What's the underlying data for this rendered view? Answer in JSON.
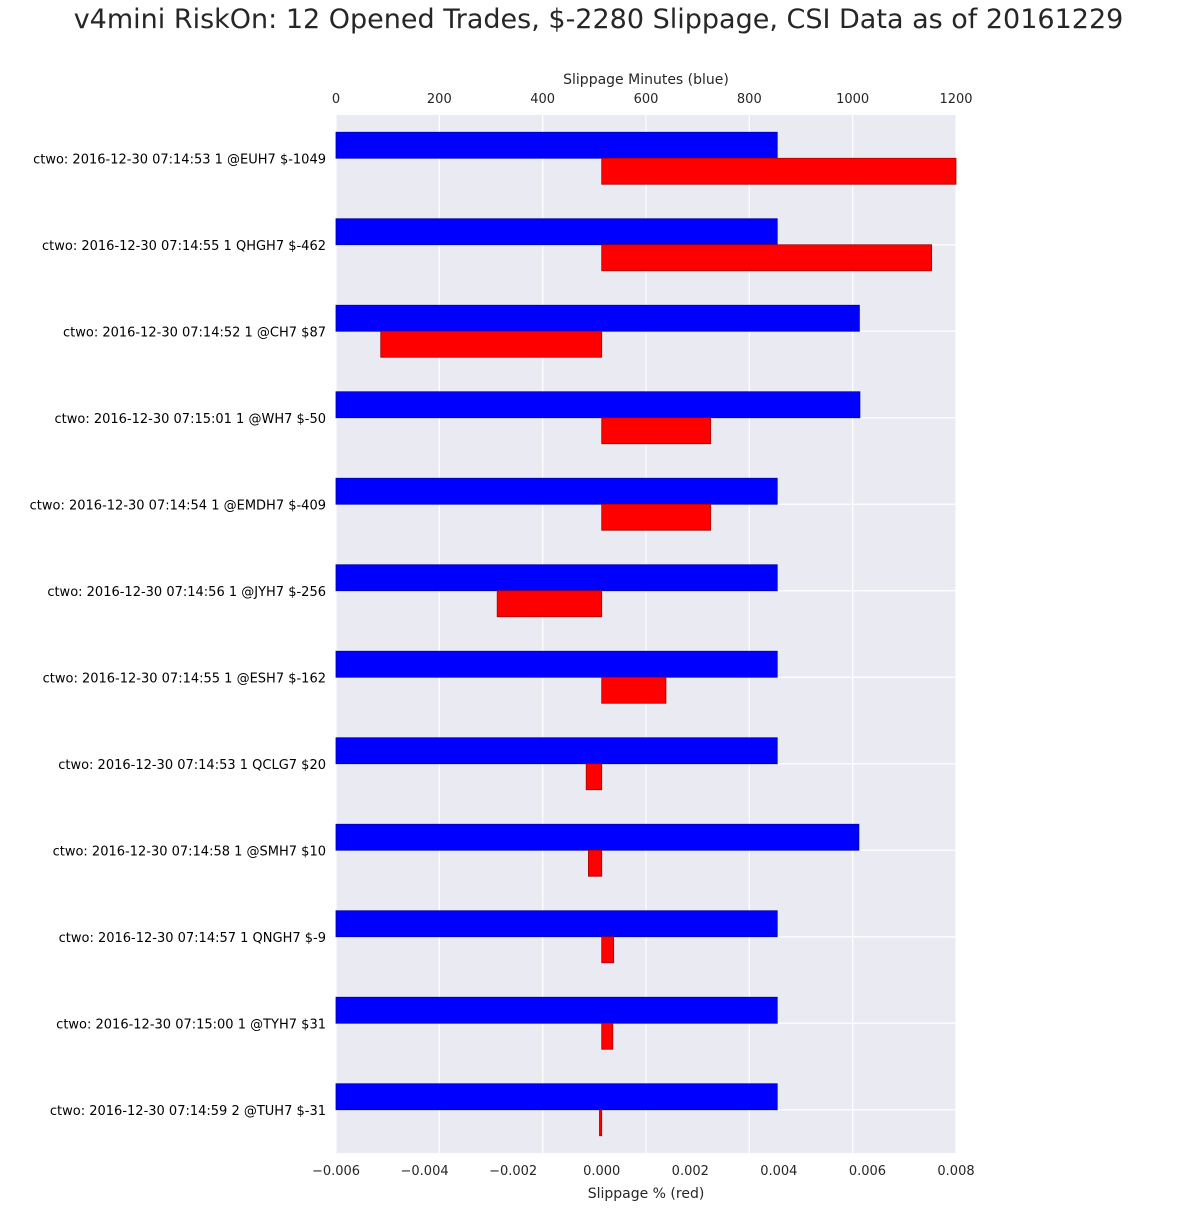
{
  "chart_data": {
    "type": "bar",
    "orientation": "horizontal",
    "title": "v4mini RiskOn: 12 Opened Trades, $-2280 Slippage, CSI Data as of 20161229",
    "top_axis": {
      "label": "Slippage Minutes (blue)",
      "range": [
        0,
        1200
      ],
      "ticks": [
        0,
        200,
        400,
        600,
        800,
        1000,
        1200
      ],
      "tick_labels": [
        "0",
        "200",
        "400",
        "600",
        "800",
        "1000",
        "1200"
      ]
    },
    "bottom_axis": {
      "label": "Slippage % (red)",
      "range": [
        -0.006,
        0.008
      ],
      "ticks": [
        -0.006,
        -0.004,
        -0.002,
        0.0,
        0.002,
        0.004,
        0.006,
        0.008
      ],
      "tick_labels": [
        "−0.006",
        "−0.004",
        "−0.002",
        "0.000",
        "0.002",
        "0.004",
        "0.006",
        "0.008"
      ]
    },
    "grid": true,
    "categories": [
      "ctwo: 2016-12-30 07:14:53 1 @EUH7 $-1049",
      "ctwo: 2016-12-30 07:14:55 1 QHGH7 $-462",
      "ctwo: 2016-12-30 07:14:52 1 @CH7 $87",
      "ctwo: 2016-12-30 07:15:01 1 @WH7 $-50",
      "ctwo: 2016-12-30 07:14:54 1 @EMDH7 $-409",
      "ctwo: 2016-12-30 07:14:56 1 @JYH7 $-256",
      "ctwo: 2016-12-30 07:14:55 1 @ESH7 $-162",
      "ctwo: 2016-12-30 07:14:53 1 QCLG7 $20",
      "ctwo: 2016-12-30 07:14:58 1 @SMH7 $10",
      "ctwo: 2016-12-30 07:14:57 1 QNGH7 $-9",
      "ctwo: 2016-12-30 07:15:00 1 @TYH7 $31",
      "ctwo: 2016-12-30 07:14:59 2 @TUH7 $-31"
    ],
    "series": [
      {
        "name": "Slippage Minutes (blue)",
        "color": "#0000ff",
        "axis": "top",
        "values": [
          854,
          854,
          1013,
          1014,
          854,
          854,
          854,
          854,
          1012,
          854,
          854,
          854
        ]
      },
      {
        "name": "Slippage % (red)",
        "color": "#ff0000",
        "axis": "bottom",
        "values": [
          0.008,
          0.00745,
          -0.00499,
          0.00246,
          0.00246,
          -0.00236,
          0.00145,
          -0.00035,
          -0.0003,
          0.00027,
          0.00025,
          -5e-05
        ]
      }
    ]
  }
}
